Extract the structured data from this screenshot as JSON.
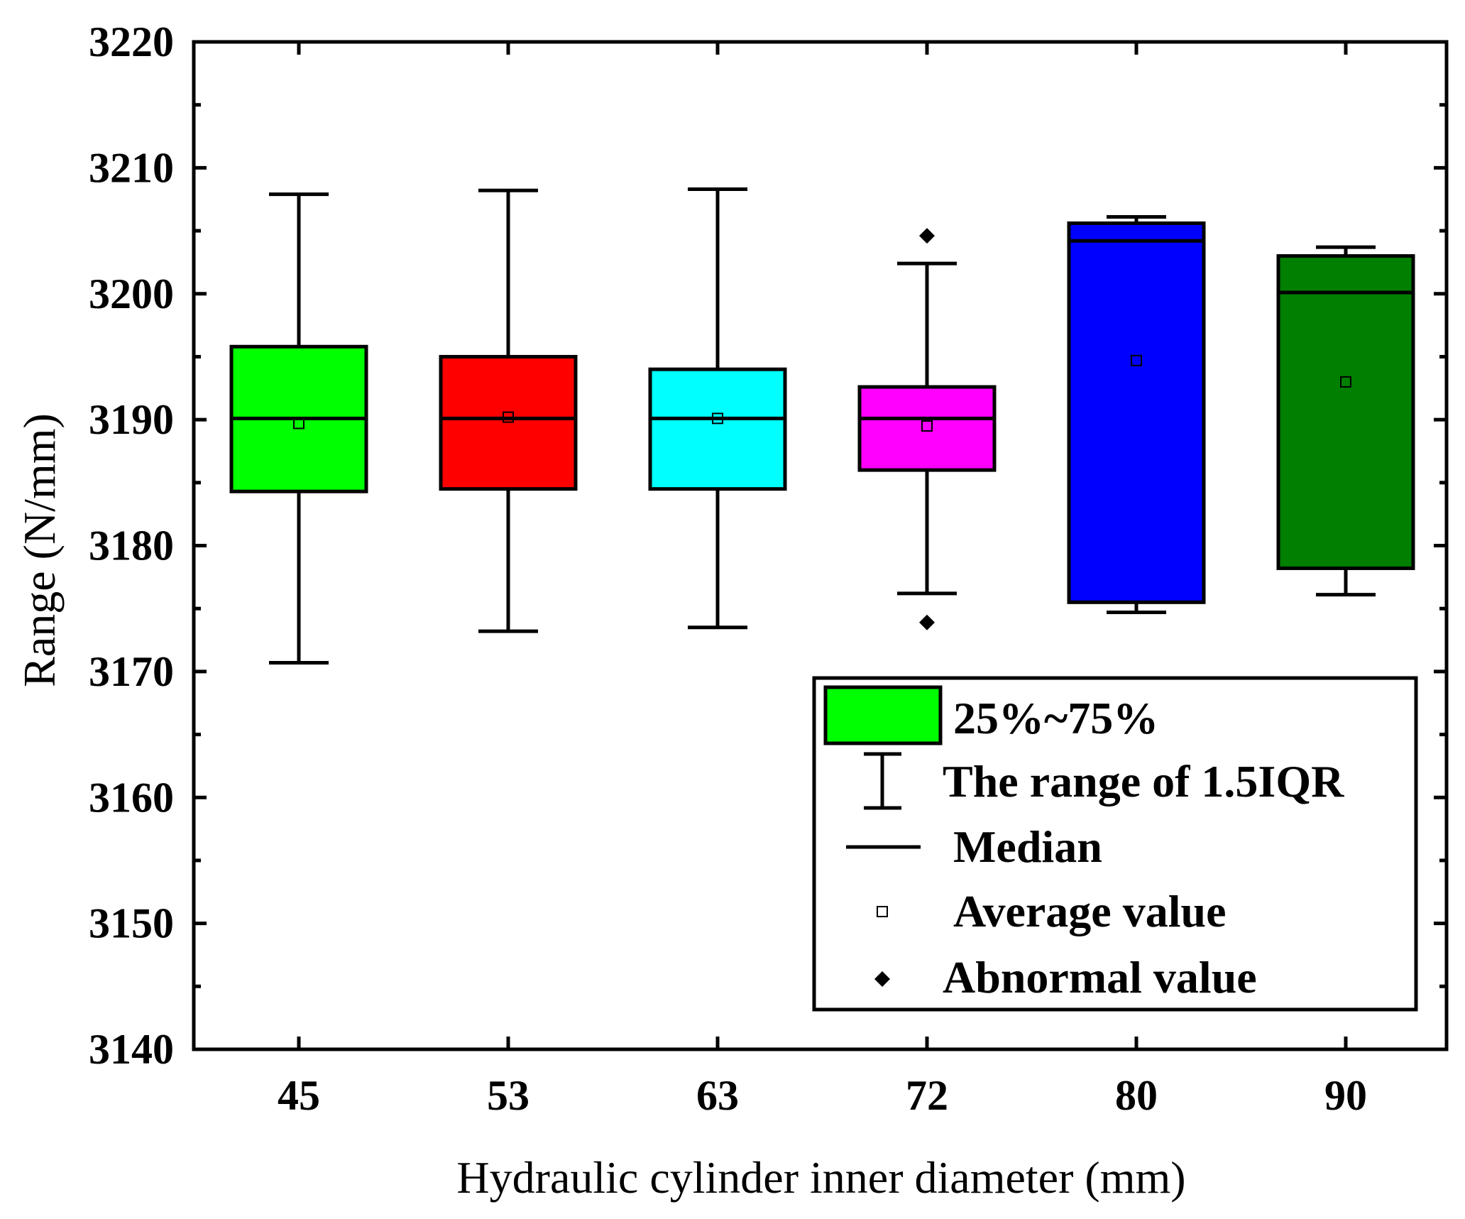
{
  "chart_data": {
    "type": "box",
    "title": "",
    "xlabel": "Hydraulic cylinder inner diameter (mm)",
    "ylabel": "Range (N/mm)",
    "ylim": [
      3140,
      3220
    ],
    "y_ticks": [
      3140,
      3150,
      3160,
      3170,
      3180,
      3190,
      3200,
      3210,
      3220
    ],
    "y_tick_labels": [
      "3140",
      "3150",
      "3160",
      "3170",
      "3180",
      "3190",
      "3200",
      "3210",
      "3220"
    ],
    "categories": [
      "45",
      "53",
      "63",
      "72",
      "80",
      "90"
    ],
    "boxes": [
      {
        "category": "45",
        "whisker_low": 3170.7,
        "q1": 3184.3,
        "median": 3190.1,
        "q3": 3195.8,
        "whisker_high": 3207.9,
        "mean": 3189.7,
        "outliers": [],
        "color": "#00ff00"
      },
      {
        "category": "53",
        "whisker_low": 3173.2,
        "q1": 3184.5,
        "median": 3190.1,
        "q3": 3195.0,
        "whisker_high": 3208.2,
        "mean": 3190.2,
        "outliers": [],
        "color": "#ff0000"
      },
      {
        "category": "63",
        "whisker_low": 3173.5,
        "q1": 3184.5,
        "median": 3190.1,
        "q3": 3194.0,
        "whisker_high": 3208.3,
        "mean": 3190.1,
        "outliers": [],
        "color": "#00ffff"
      },
      {
        "category": "72",
        "whisker_low": 3176.2,
        "q1": 3186.0,
        "median": 3190.1,
        "q3": 3192.6,
        "whisker_high": 3202.4,
        "mean": 3189.5,
        "outliers": [
          3173.9,
          3204.6
        ],
        "color": "#ff00ff"
      },
      {
        "category": "80",
        "whisker_low": 3174.7,
        "q1": 3175.5,
        "median": 3204.2,
        "q3": 3205.6,
        "whisker_high": 3206.1,
        "mean": 3194.7,
        "outliers": [],
        "color": "#0000ff"
      },
      {
        "category": "90",
        "whisker_low": 3176.1,
        "q1": 3178.2,
        "median": 3200.1,
        "q3": 3203.0,
        "whisker_high": 3203.7,
        "mean": 3193.0,
        "outliers": [],
        "color": "#007f00"
      }
    ],
    "legend": {
      "position": "bottom-right",
      "entries": [
        {
          "label": "25%~75%",
          "symbol": "box"
        },
        {
          "label": "The range of 1.5IQR",
          "symbol": "whisker"
        },
        {
          "label": "Median",
          "symbol": "line"
        },
        {
          "label": "Average value",
          "symbol": "square"
        },
        {
          "label": "Abnormal value",
          "symbol": "diamond"
        }
      ]
    }
  }
}
